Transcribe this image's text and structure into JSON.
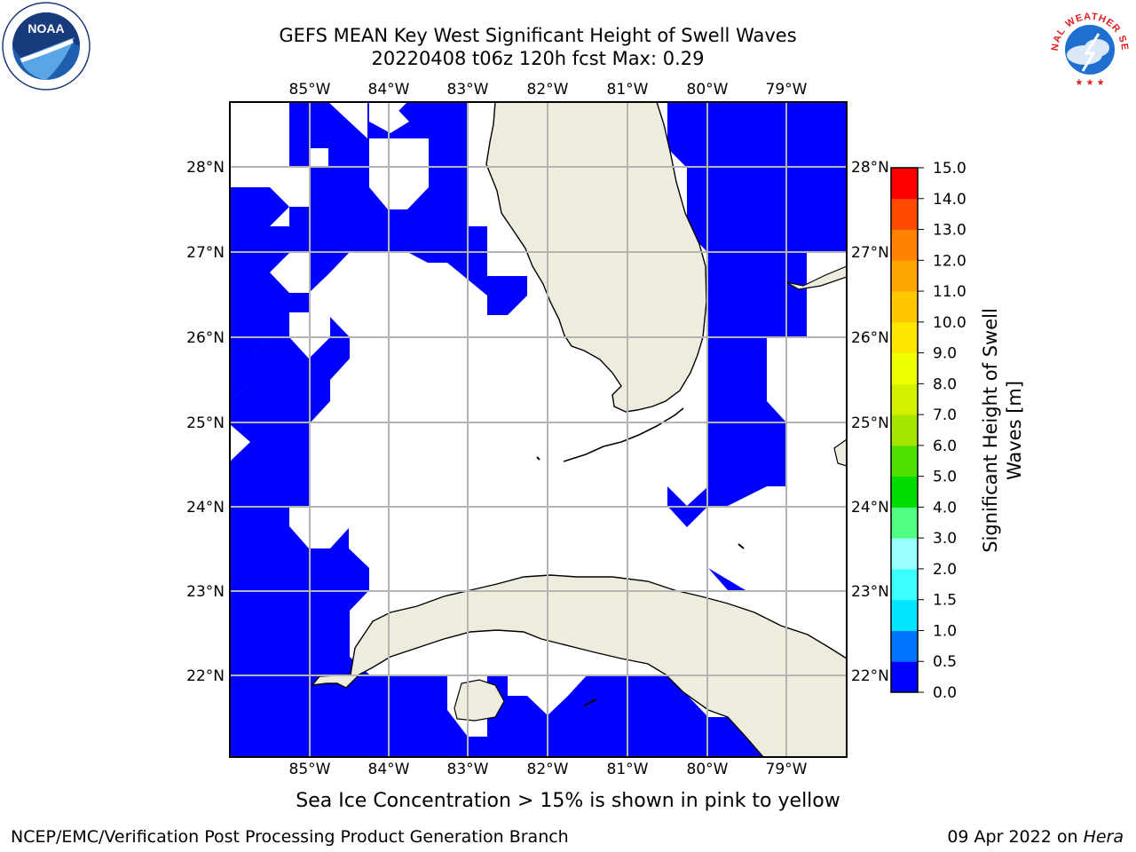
{
  "header": {
    "title_line1": "GEFS MEAN Key West Significant Height of Swell Waves",
    "title_line2": "20220408 t06z 120h fcst   Max: 0.29"
  },
  "logos": {
    "left": {
      "icon": "noaa-logo",
      "text": "NOAA",
      "ring_text": "NATIONAL OCEANIC AND ATMOSPHERIC ADMINISTRATION · U.S. DEPARTMENT OF COMMERCE"
    },
    "right": {
      "icon": "nws-logo",
      "ring_text": "NATIONAL WEATHER SERVICE"
    }
  },
  "map": {
    "lon_labels": [
      "85°W",
      "84°W",
      "83°W",
      "82°W",
      "81°W",
      "80°W",
      "79°W"
    ],
    "lat_labels": [
      "28°N",
      "27°N",
      "26°N",
      "25°N",
      "24°N",
      "23°N",
      "22°N"
    ],
    "colors": {
      "wave_low": "#0000ff",
      "land": "#eeecdc",
      "grid": "#b4b4b4",
      "coast": "#000000"
    }
  },
  "colorbar": {
    "title_line1": "Significant Height of Swell",
    "title_line2": "Waves [m]",
    "ticks": [
      "0.0",
      "0.5",
      "1.0",
      "1.5",
      "2.0",
      "3.0",
      "4.0",
      "5.0",
      "6.0",
      "7.0",
      "8.0",
      "9.0",
      "10.0",
      "11.0",
      "12.0",
      "13.0",
      "14.0",
      "15.0"
    ],
    "colors": [
      "#0000ff",
      "#0073ff",
      "#00e6ff",
      "#3cffff",
      "#9bffff",
      "#50ff82",
      "#00dc00",
      "#50e000",
      "#a5e600",
      "#d2f000",
      "#f0ff00",
      "#ffe600",
      "#ffc800",
      "#ffa500",
      "#ff8200",
      "#ff4b00",
      "#ff0000"
    ]
  },
  "footer": {
    "sea_ice_note": "Sea Ice Concentration > 15% is shown in pink to yellow",
    "left": "NCEP/EMC/Verification Post Processing Product Generation Branch",
    "right_prefix": "09 Apr 2022 on ",
    "right_host": "Hera"
  }
}
